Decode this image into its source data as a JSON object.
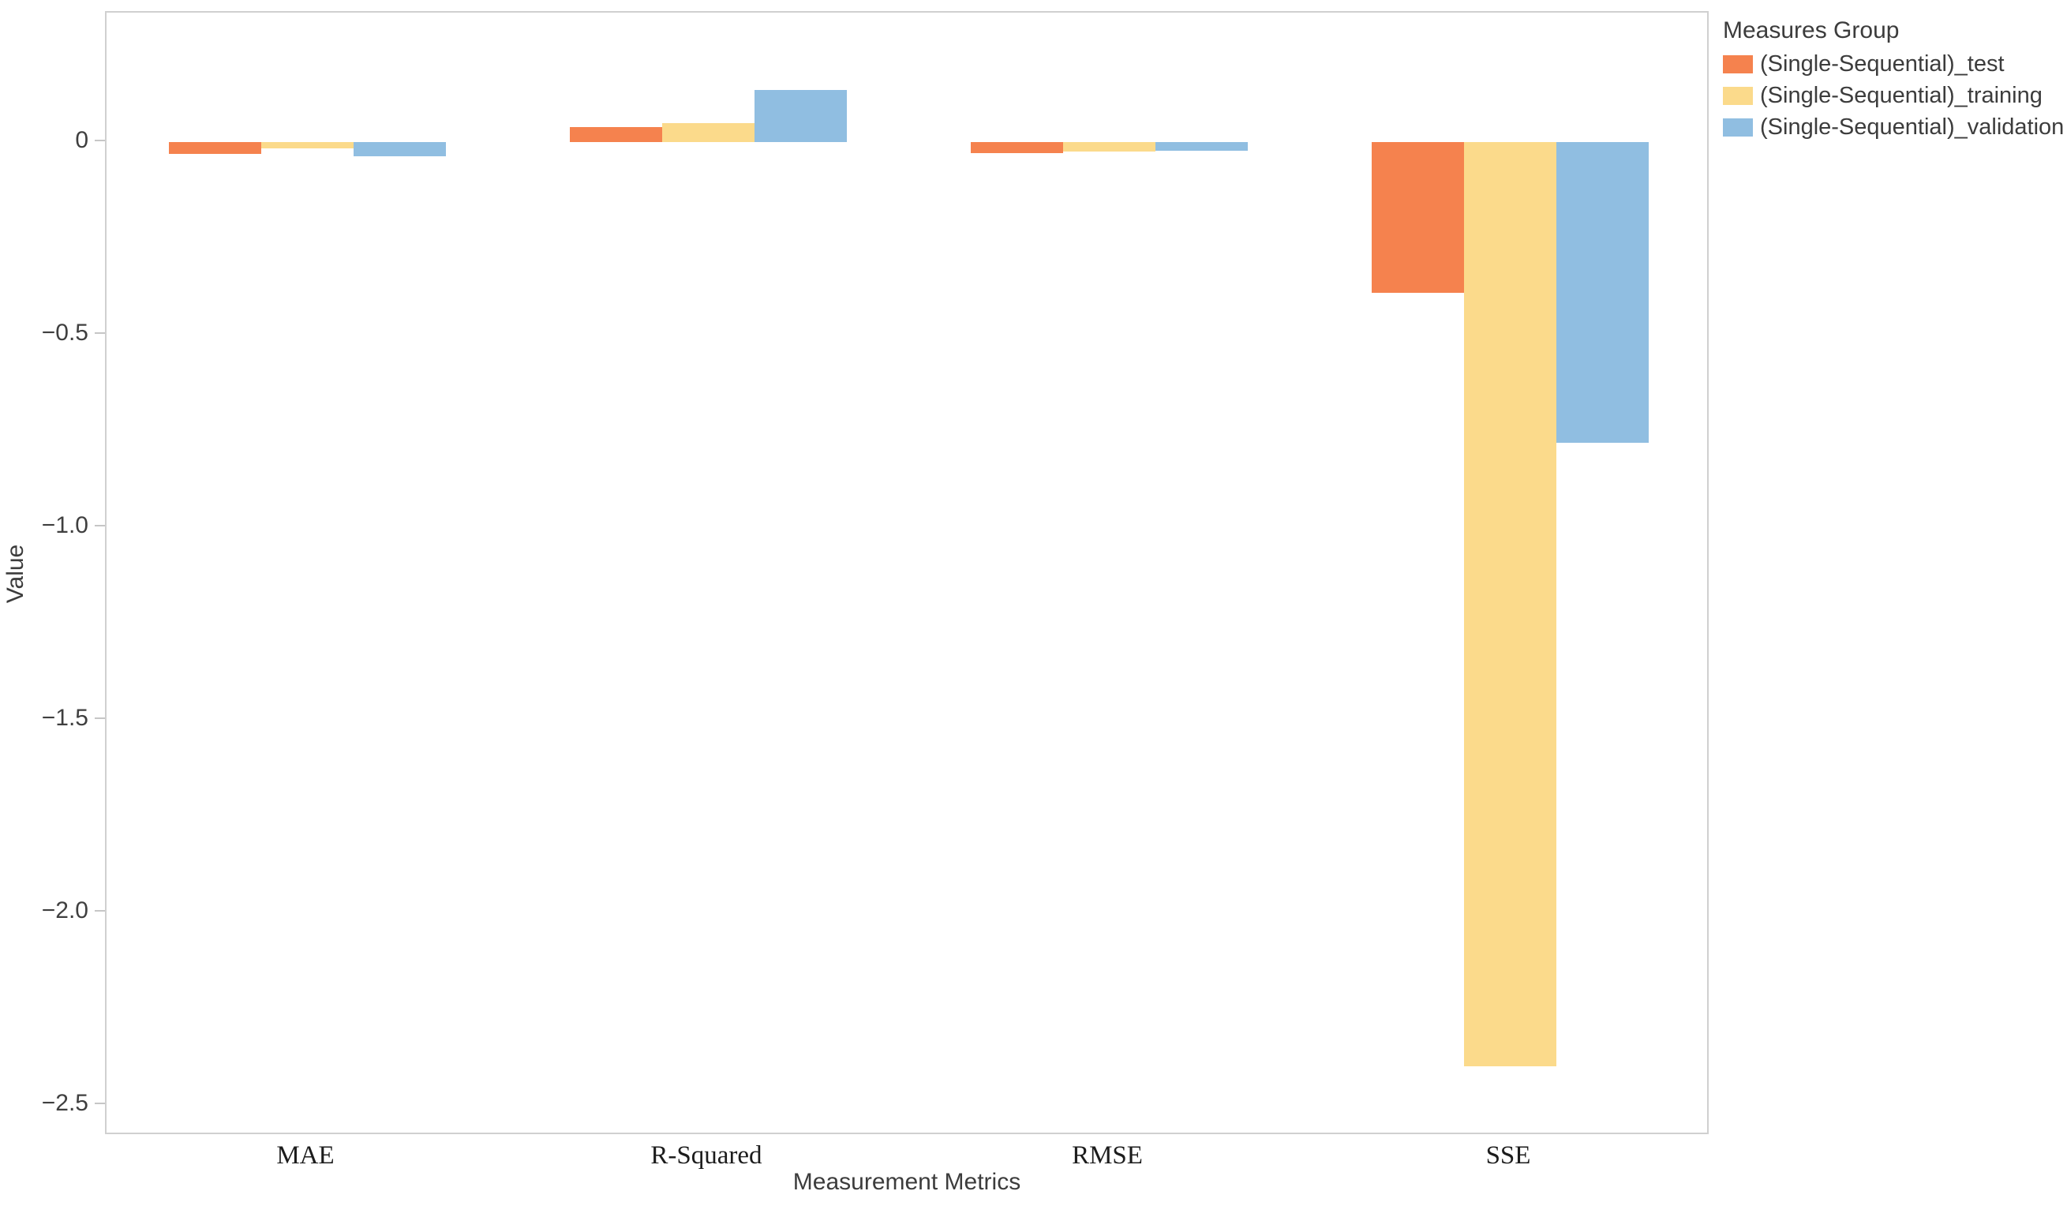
{
  "chart_data": {
    "type": "bar",
    "title": "",
    "xlabel": "Measurement Metrics",
    "ylabel": "Value",
    "categories": [
      "MAE",
      "R-Squared",
      "RMSE",
      "SSE"
    ],
    "series": [
      {
        "name": "(Single-Sequential)_test",
        "key": "test",
        "color": "#F5824E",
        "values": [
          -0.029,
          0.039,
          -0.028,
          -0.39
        ]
      },
      {
        "name": "(Single-Sequential)_training",
        "key": "training",
        "color": "#FBDA8B",
        "values": [
          -0.015,
          0.049,
          -0.023,
          -2.4
        ]
      },
      {
        "name": "(Single-Sequential)_validation",
        "key": "validation",
        "color": "#90BEE1",
        "values": [
          -0.036,
          0.137,
          -0.021,
          -0.78
        ]
      }
    ],
    "yticks": [
      0,
      -0.5,
      -1.0,
      -1.5,
      -2.0,
      -2.5
    ],
    "ytick_labels": [
      "0",
      "−0.5",
      "−1.0",
      "−1.5",
      "−2.0",
      "−2.5"
    ],
    "ylim": [
      -2.58,
      0.337
    ],
    "legend_title": "Measures Group",
    "legend_position": "top-right",
    "grid": false,
    "axis_color": "#d0d0d0"
  }
}
